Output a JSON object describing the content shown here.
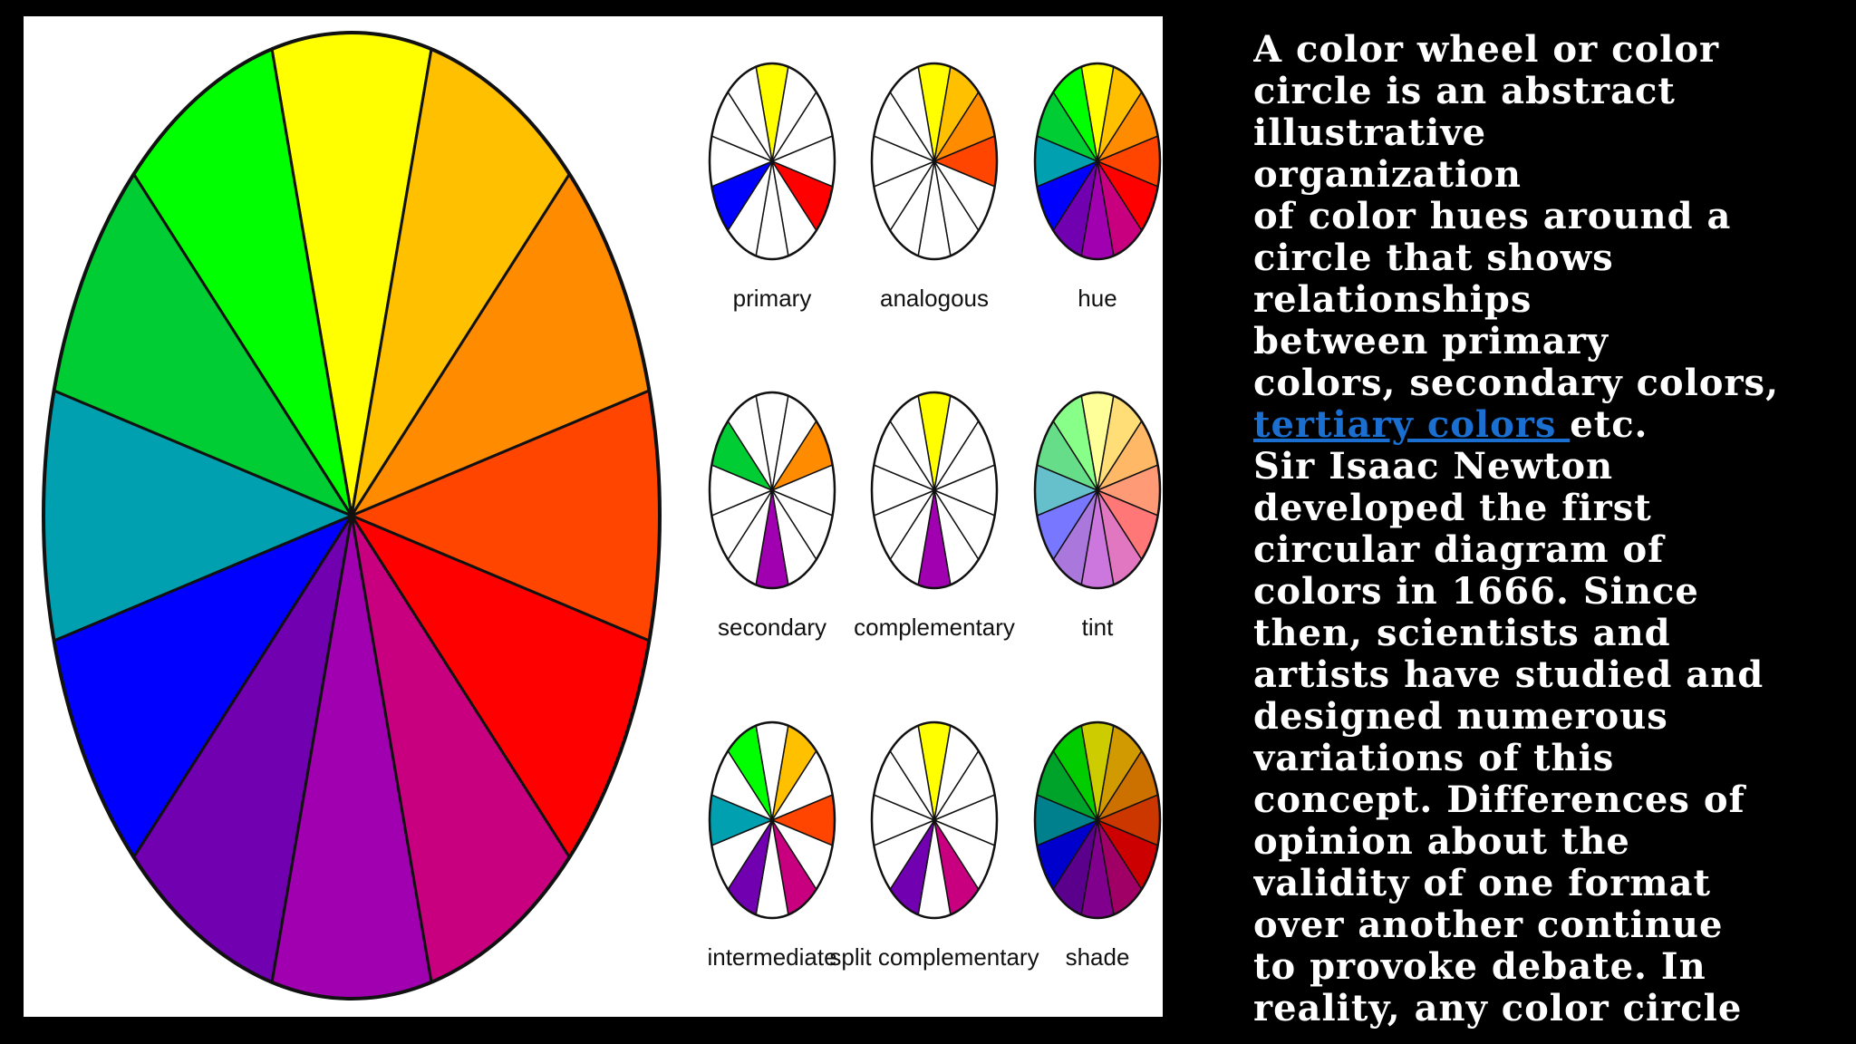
{
  "figure": {
    "main_wheel": {
      "segments": [
        "#ffff00",
        "#ffc000",
        "#ff8c00",
        "#ff4500",
        "#ff0000",
        "#c80080",
        "#a000b0",
        "#7000b0",
        "#0000ff",
        "#00a0b0",
        "#00cc33",
        "#00ff00"
      ]
    },
    "mini_wheels": [
      {
        "label": "primary",
        "segments": [
          "#ffff00",
          "#ffffff",
          "#ffffff",
          "#ffffff",
          "#ff0000",
          "#ffffff",
          "#ffffff",
          "#ffffff",
          "#0000ff",
          "#ffffff",
          "#ffffff",
          "#ffffff"
        ]
      },
      {
        "label": "analogous",
        "segments": [
          "#ffff00",
          "#ffc000",
          "#ff8c00",
          "#ff4500",
          "#ffffff",
          "#ffffff",
          "#ffffff",
          "#ffffff",
          "#ffffff",
          "#ffffff",
          "#ffffff",
          "#ffffff"
        ]
      },
      {
        "label": "hue",
        "segments": [
          "#ffff00",
          "#ffc000",
          "#ff8c00",
          "#ff4500",
          "#ff0000",
          "#c80080",
          "#a000b0",
          "#7000b0",
          "#0000ff",
          "#00a0b0",
          "#00cc33",
          "#00ff00"
        ]
      },
      {
        "label": "secondary",
        "segments": [
          "#ffffff",
          "#ffffff",
          "#ff8c00",
          "#ffffff",
          "#ffffff",
          "#ffffff",
          "#a000b0",
          "#ffffff",
          "#ffffff",
          "#ffffff",
          "#00cc33",
          "#ffffff"
        ]
      },
      {
        "label": "complementary",
        "segments": [
          "#ffff00",
          "#ffffff",
          "#ffffff",
          "#ffffff",
          "#ffffff",
          "#ffffff",
          "#a000b0",
          "#ffffff",
          "#ffffff",
          "#ffffff",
          "#ffffff",
          "#ffffff"
        ]
      },
      {
        "label": "tint",
        "segments": [
          "#ffff99",
          "#ffdd77",
          "#ffb866",
          "#ff9a77",
          "#ff7777",
          "#e077c0",
          "#cc77dd",
          "#aa77dd",
          "#7777ff",
          "#66c0cc",
          "#66dd88",
          "#88ff88"
        ]
      },
      {
        "label": "intermediate",
        "segments": [
          "#ffffff",
          "#ffc000",
          "#ffffff",
          "#ff4500",
          "#ffffff",
          "#c80080",
          "#ffffff",
          "#7000b0",
          "#ffffff",
          "#00a0b0",
          "#ffffff",
          "#00ff00"
        ]
      },
      {
        "label": "split complementary",
        "segments": [
          "#ffff00",
          "#ffffff",
          "#ffffff",
          "#ffffff",
          "#ffffff",
          "#c80080",
          "#ffffff",
          "#7000b0",
          "#ffffff",
          "#ffffff",
          "#ffffff",
          "#ffffff"
        ]
      },
      {
        "label": "shade",
        "segments": [
          "#cccc00",
          "#d09a00",
          "#cc7000",
          "#cc3700",
          "#cc0000",
          "#a00066",
          "#80008d",
          "#5a008d",
          "#0000cc",
          "#00808d",
          "#00a329",
          "#00cc00"
        ]
      }
    ]
  },
  "text": {
    "paragraph1_lines": [
      "A color wheel or color",
      "circle is an abstract",
      "illustrative",
      "organization",
      "of color hues around a",
      "circle that shows",
      "relationships",
      "between primary",
      "colors, secondary colors,"
    ],
    "paragraph1_link": "tertiary colors ",
    "paragraph1_end": "etc.",
    "paragraph2_lines": [
      "Sir Isaac Newton",
      "developed the first",
      "circular diagram of",
      "colors in 1666. Since",
      "then, scientists and",
      "artists have studied and",
      "designed numerous",
      "variations of this",
      "concept. Differences of",
      "opinion about the",
      "validity of one format",
      "over another continue",
      "to provoke debate. In",
      "reality, any color circle"
    ]
  },
  "colors": {
    "background": "#000000",
    "text": "#ffffff",
    "link": "#1a6fd1"
  }
}
